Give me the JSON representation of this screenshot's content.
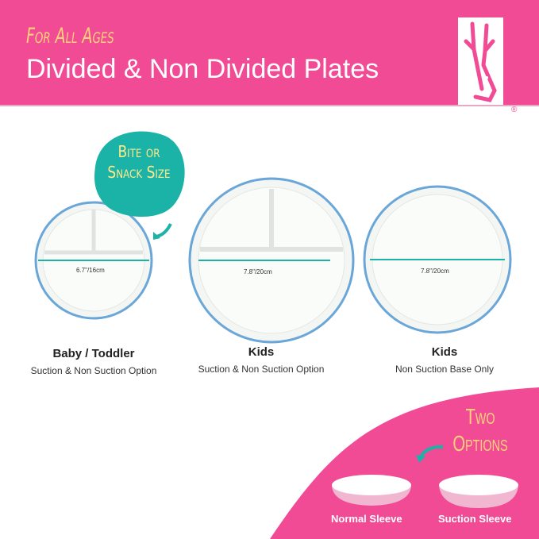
{
  "header": {
    "kicker": "For All Ages",
    "title": "Divided & Non Divided Plates",
    "logo_registered": "®"
  },
  "callout": {
    "bubble_text": "Bite or Snack Size",
    "bubble_color": "#1bb3a7"
  },
  "plates": [
    {
      "dimension": "6.7\"/16cm",
      "name": "Baby / Toddler",
      "subtitle": "Suction & Non Suction Option",
      "divided": true
    },
    {
      "dimension": "7.8\"/20cm",
      "name": "Kids",
      "subtitle": "Suction & Non Suction Option",
      "divided": true
    },
    {
      "dimension": "7.8\"/20cm",
      "name": "Kids",
      "subtitle": "Non Suction Base Only",
      "divided": false
    }
  ],
  "options": {
    "heading": "Two Options",
    "items": [
      "Normal Sleeve",
      "Suction Sleeve"
    ]
  },
  "colors": {
    "brand_pink": "#f24b95",
    "accent_yellow": "#ffd27a",
    "teal": "#1bb3a7",
    "rim_blue": "#6aa7d8"
  }
}
